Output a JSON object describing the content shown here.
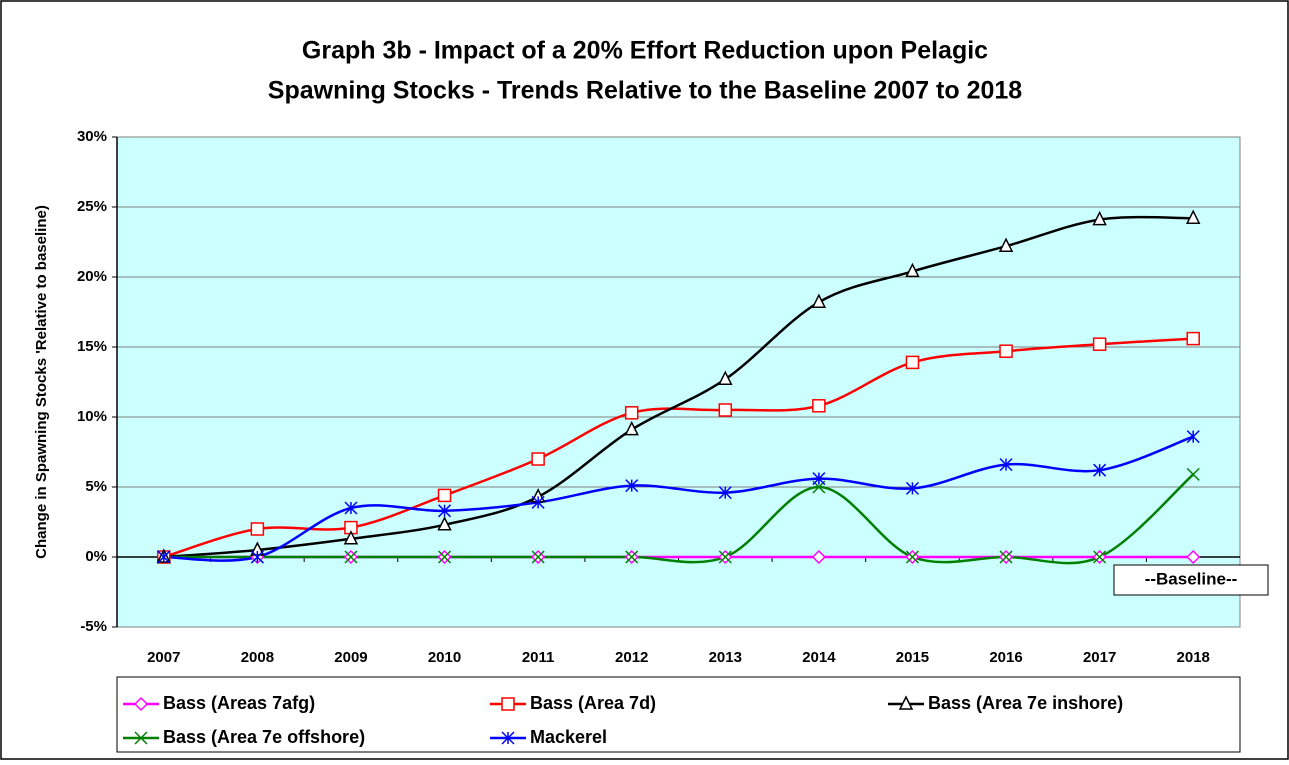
{
  "chart_data": {
    "type": "line",
    "title": [
      "Graph 3b - Impact of a 20% Effort Reduction upon Pelagic",
      "Spawning Stocks - Trends Relative to the Baseline 2007 to 2018"
    ],
    "y_label": "Change in Spawning Stocks 'Relative to baseline)",
    "annotation": "--Baseline--",
    "categories": [
      "2007",
      "2008",
      "2009",
      "2010",
      "2011",
      "2012",
      "2013",
      "2014",
      "2015",
      "2016",
      "2017",
      "2018"
    ],
    "ylim": [
      -5,
      30
    ],
    "yticks": [
      {
        "value": -5,
        "label": "-5%"
      },
      {
        "value": 0,
        "label": "0%"
      },
      {
        "value": 5,
        "label": "5%"
      },
      {
        "value": 10,
        "label": "10%"
      },
      {
        "value": 15,
        "label": "15%"
      },
      {
        "value": 20,
        "label": "20%"
      },
      {
        "value": 25,
        "label": "25%"
      },
      {
        "value": 30,
        "label": "30%"
      }
    ],
    "grid": true,
    "smooth": true,
    "background": "#ccffff",
    "series": [
      {
        "name": "Bass (Areas 7afg)",
        "color": "#ff00ff",
        "marker": "diamond",
        "values": [
          0,
          0,
          0,
          0,
          0,
          0,
          0,
          0,
          0,
          0,
          0,
          0
        ]
      },
      {
        "name": "Bass (Area 7d)",
        "color": "#ff0000",
        "marker": "square",
        "values": [
          0,
          2.0,
          2.1,
          4.4,
          7.0,
          10.3,
          10.5,
          10.8,
          13.9,
          14.7,
          15.2,
          15.6
        ]
      },
      {
        "name": "Bass (Area 7e inshore)",
        "color": "#000000",
        "marker": "triangle",
        "values": [
          0,
          0.5,
          1.3,
          2.3,
          4.3,
          9.1,
          12.7,
          18.2,
          20.4,
          22.2,
          24.1,
          24.2
        ]
      },
      {
        "name": "Bass (Area 7e offshore)",
        "color": "#008000",
        "marker": "x",
        "values": [
          0,
          0,
          0,
          0,
          0,
          0,
          0,
          5.0,
          0,
          0,
          0,
          5.9
        ]
      },
      {
        "name": "Mackerel",
        "color": "#0000ff",
        "marker": "star",
        "values": [
          0,
          0,
          3.5,
          3.3,
          3.9,
          5.1,
          4.6,
          5.6,
          4.9,
          6.6,
          6.2,
          8.6
        ]
      }
    ]
  }
}
